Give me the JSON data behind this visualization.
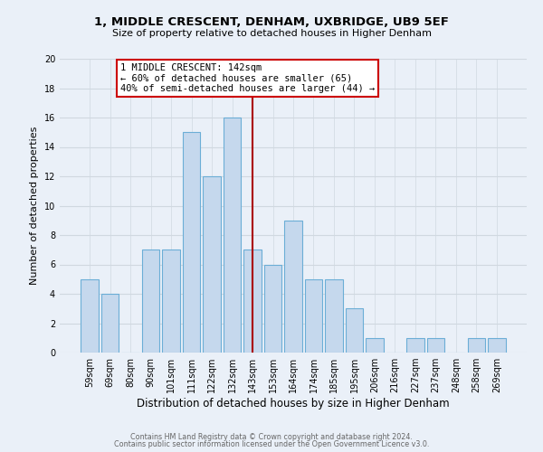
{
  "title": "1, MIDDLE CRESCENT, DENHAM, UXBRIDGE, UB9 5EF",
  "subtitle": "Size of property relative to detached houses in Higher Denham",
  "xlabel": "Distribution of detached houses by size in Higher Denham",
  "ylabel": "Number of detached properties",
  "bar_labels": [
    "59sqm",
    "69sqm",
    "80sqm",
    "90sqm",
    "101sqm",
    "111sqm",
    "122sqm",
    "132sqm",
    "143sqm",
    "153sqm",
    "164sqm",
    "174sqm",
    "185sqm",
    "195sqm",
    "206sqm",
    "216sqm",
    "227sqm",
    "237sqm",
    "248sqm",
    "258sqm",
    "269sqm"
  ],
  "bar_values": [
    5,
    4,
    0,
    7,
    7,
    15,
    12,
    16,
    7,
    6,
    9,
    5,
    5,
    3,
    1,
    0,
    1,
    1,
    0,
    1,
    1
  ],
  "bar_color": "#c5d8ed",
  "bar_edge_color": "#6baed6",
  "highlight_index": 8,
  "highlight_line_color": "#aa0000",
  "annotation_line1": "1 MIDDLE CRESCENT: 142sqm",
  "annotation_line2": "← 60% of detached houses are smaller (65)",
  "annotation_line3": "40% of semi-detached houses are larger (44) →",
  "annotation_box_color": "#ffffff",
  "annotation_box_edge_color": "#cc0000",
  "ylim": [
    0,
    20
  ],
  "yticks": [
    0,
    2,
    4,
    6,
    8,
    10,
    12,
    14,
    16,
    18,
    20
  ],
  "grid_color": "#d0d8e0",
  "background_color": "#eaf0f8",
  "footer_line1": "Contains HM Land Registry data © Crown copyright and database right 2024.",
  "footer_line2": "Contains public sector information licensed under the Open Government Licence v3.0."
}
